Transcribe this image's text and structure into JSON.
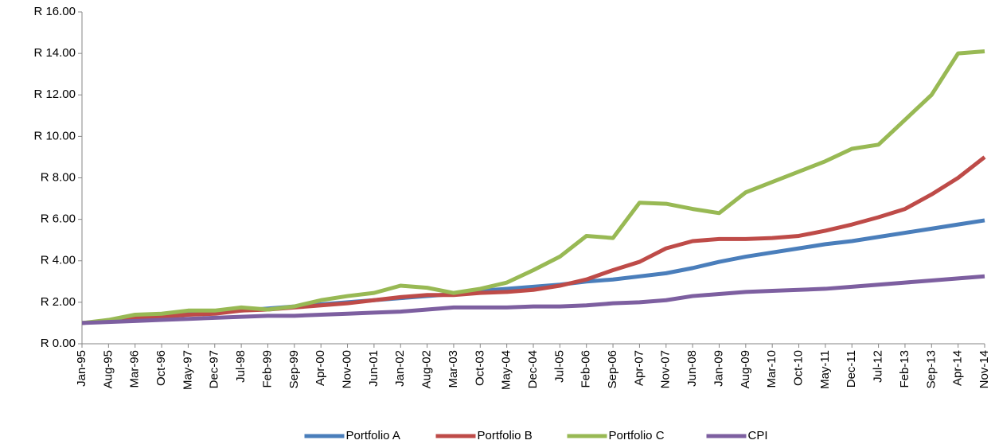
{
  "chart_data": {
    "type": "line",
    "categories": [
      "Jan-95",
      "Aug-95",
      "Mar-96",
      "Oct-96",
      "May-97",
      "Dec-97",
      "Jul-98",
      "Feb-99",
      "Sep-99",
      "Apr-00",
      "Nov-00",
      "Jun-01",
      "Jan-02",
      "Aug-02",
      "Mar-03",
      "Oct-03",
      "May-04",
      "Dec-04",
      "Jul-05",
      "Feb-06",
      "Sep-06",
      "Apr-07",
      "Nov-07",
      "Jun-08",
      "Jan-09",
      "Aug-09",
      "Mar-10",
      "Oct-10",
      "May-11",
      "Dec-11",
      "Jul-12",
      "Feb-13",
      "Sep-13",
      "Apr-14",
      "Nov-14"
    ],
    "series": [
      {
        "name": "Portfolio A",
        "color": "#4a7ebb",
        "values": [
          1.0,
          1.1,
          1.25,
          1.35,
          1.45,
          1.5,
          1.6,
          1.7,
          1.8,
          1.9,
          2.0,
          2.1,
          2.2,
          2.3,
          2.4,
          2.55,
          2.65,
          2.75,
          2.85,
          3.0,
          3.1,
          3.25,
          3.4,
          3.65,
          3.95,
          4.2,
          4.4,
          4.6,
          4.8,
          4.95,
          5.15,
          5.35,
          5.55,
          5.75,
          5.95
        ]
      },
      {
        "name": "Portfolio B",
        "color": "#be4b48",
        "values": [
          1.0,
          1.1,
          1.25,
          1.3,
          1.4,
          1.45,
          1.6,
          1.65,
          1.75,
          1.85,
          1.95,
          2.1,
          2.25,
          2.35,
          2.35,
          2.45,
          2.5,
          2.6,
          2.8,
          3.1,
          3.55,
          3.95,
          4.6,
          4.95,
          5.05,
          5.05,
          5.1,
          5.2,
          5.45,
          5.75,
          6.1,
          6.5,
          7.2,
          8.0,
          9.0
        ]
      },
      {
        "name": "Portfolio C",
        "color": "#98b954",
        "values": [
          1.0,
          1.15,
          1.4,
          1.45,
          1.6,
          1.6,
          1.75,
          1.65,
          1.8,
          2.1,
          2.3,
          2.45,
          2.8,
          2.7,
          2.45,
          2.65,
          2.95,
          3.55,
          4.2,
          5.2,
          5.1,
          6.8,
          6.75,
          6.5,
          6.3,
          7.3,
          7.8,
          8.3,
          8.8,
          9.4,
          9.6,
          10.8,
          12.0,
          14.0,
          14.1
        ]
      },
      {
        "name": "CPI",
        "color": "#7d5fa0",
        "values": [
          1.0,
          1.05,
          1.1,
          1.15,
          1.2,
          1.25,
          1.3,
          1.35,
          1.35,
          1.4,
          1.45,
          1.5,
          1.55,
          1.65,
          1.75,
          1.75,
          1.75,
          1.8,
          1.8,
          1.85,
          1.95,
          2.0,
          2.1,
          2.3,
          2.4,
          2.5,
          2.55,
          2.6,
          2.65,
          2.75,
          2.85,
          2.95,
          3.05,
          3.15,
          3.25
        ]
      }
    ],
    "ylim": [
      0,
      16
    ],
    "yticks": [
      {
        "value": 0,
        "label": "R 0.00"
      },
      {
        "value": 2,
        "label": "R 2.00"
      },
      {
        "value": 4,
        "label": "R 4.00"
      },
      {
        "value": 6,
        "label": "R 6.00"
      },
      {
        "value": 8,
        "label": "R 8.00"
      },
      {
        "value": 10,
        "label": "R 10.00"
      },
      {
        "value": 12,
        "label": "R 12.00"
      },
      {
        "value": 14,
        "label": "R 14.00"
      },
      {
        "value": 16,
        "label": "R 16.00"
      }
    ],
    "grid": false,
    "legend": "bottom"
  }
}
